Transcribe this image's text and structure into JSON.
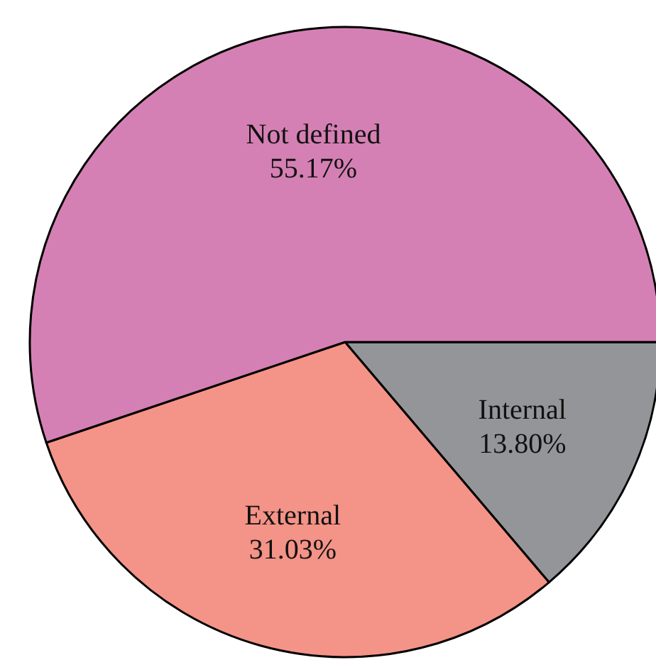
{
  "chart_data": {
    "type": "pie",
    "categories": [
      "Internal",
      "External",
      "Not defined"
    ],
    "values": [
      13.8,
      31.03,
      55.17
    ],
    "value_labels": [
      "13.80%",
      "31.03%",
      "55.17%"
    ],
    "colors": [
      "#939598",
      "#f49387",
      "#d580b4"
    ]
  }
}
